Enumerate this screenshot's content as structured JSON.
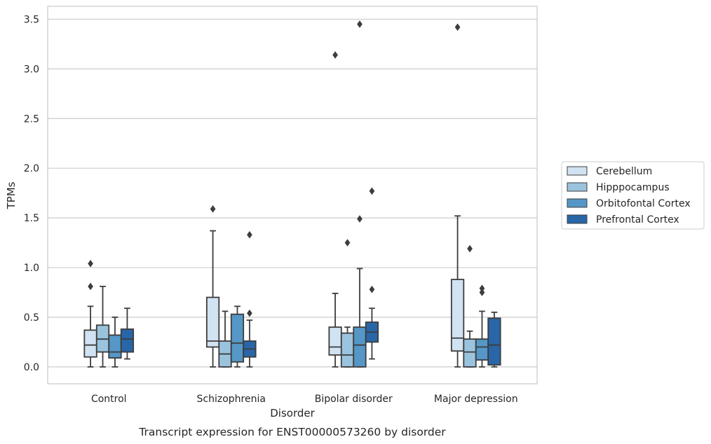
{
  "chart_data": {
    "type": "box",
    "caption": "Transcript expression for ENST00000573260 by disorder",
    "xlabel": "Disorder",
    "ylabel": "TPMs",
    "ylim": [
      -0.17,
      3.63
    ],
    "yticks": [
      0.0,
      0.5,
      1.0,
      1.5,
      2.0,
      2.5,
      3.0,
      3.5
    ],
    "ytick_labels": [
      "0.0",
      "0.5",
      "1.0",
      "1.5",
      "2.0",
      "2.5",
      "3.0",
      "3.5"
    ],
    "grid": "horizontal",
    "legend_position": "right",
    "categories": [
      "Control",
      "Schizophrenia",
      "Bipolar disorder",
      "Major depression"
    ],
    "series": [
      {
        "name": "Cerebellum",
        "color": "#d1e2f2",
        "boxes": [
          {
            "whislo": 0.0,
            "q1": 0.1,
            "med": 0.22,
            "q3": 0.37,
            "whishi": 0.61,
            "fliers": [
              0.81,
              1.04
            ]
          },
          {
            "whislo": 0.0,
            "q1": 0.2,
            "med": 0.26,
            "q3": 0.7,
            "whishi": 1.37,
            "fliers": [
              1.59
            ]
          },
          {
            "whislo": 0.0,
            "q1": 0.12,
            "med": 0.2,
            "q3": 0.4,
            "whishi": 0.74,
            "fliers": [
              3.14
            ]
          },
          {
            "whislo": 0.0,
            "q1": 0.16,
            "med": 0.29,
            "q3": 0.88,
            "whishi": 1.52,
            "fliers": [
              3.42
            ]
          }
        ]
      },
      {
        "name": "Hipppocampus",
        "color": "#9ac3de",
        "boxes": [
          {
            "whislo": 0.0,
            "q1": 0.15,
            "med": 0.28,
            "q3": 0.42,
            "whishi": 0.81,
            "fliers": []
          },
          {
            "whislo": 0.0,
            "q1": 0.0,
            "med": 0.13,
            "q3": 0.26,
            "whishi": 0.56,
            "fliers": []
          },
          {
            "whislo": 0.0,
            "q1": 0.0,
            "med": 0.12,
            "q3": 0.34,
            "whishi": 0.4,
            "fliers": [
              1.25
            ]
          },
          {
            "whislo": 0.0,
            "q1": 0.0,
            "med": 0.15,
            "q3": 0.28,
            "whishi": 0.36,
            "fliers": [
              1.19
            ]
          }
        ]
      },
      {
        "name": "Orbitofontal Cortex",
        "color": "#5597c6",
        "boxes": [
          {
            "whislo": 0.0,
            "q1": 0.09,
            "med": 0.15,
            "q3": 0.32,
            "whishi": 0.5,
            "fliers": []
          },
          {
            "whislo": 0.0,
            "q1": 0.05,
            "med": 0.24,
            "q3": 0.53,
            "whishi": 0.61,
            "fliers": []
          },
          {
            "whislo": 0.0,
            "q1": 0.0,
            "med": 0.22,
            "q3": 0.4,
            "whishi": 0.99,
            "fliers": [
              1.49,
              3.45
            ]
          },
          {
            "whislo": 0.0,
            "q1": 0.07,
            "med": 0.2,
            "q3": 0.28,
            "whishi": 0.56,
            "fliers": [
              0.75,
              0.79
            ]
          }
        ]
      },
      {
        "name": "Prefrontal Cortex",
        "color": "#2866a8",
        "boxes": [
          {
            "whislo": 0.08,
            "q1": 0.15,
            "med": 0.28,
            "q3": 0.38,
            "whishi": 0.59,
            "fliers": []
          },
          {
            "whislo": 0.0,
            "q1": 0.1,
            "med": 0.18,
            "q3": 0.26,
            "whishi": 0.47,
            "fliers": [
              0.54,
              1.33
            ]
          },
          {
            "whislo": 0.08,
            "q1": 0.25,
            "med": 0.35,
            "q3": 0.45,
            "whishi": 0.59,
            "fliers": [
              0.78,
              1.77
            ]
          },
          {
            "whislo": 0.0,
            "q1": 0.02,
            "med": 0.22,
            "q3": 0.49,
            "whishi": 0.55,
            "fliers": []
          }
        ]
      }
    ]
  }
}
